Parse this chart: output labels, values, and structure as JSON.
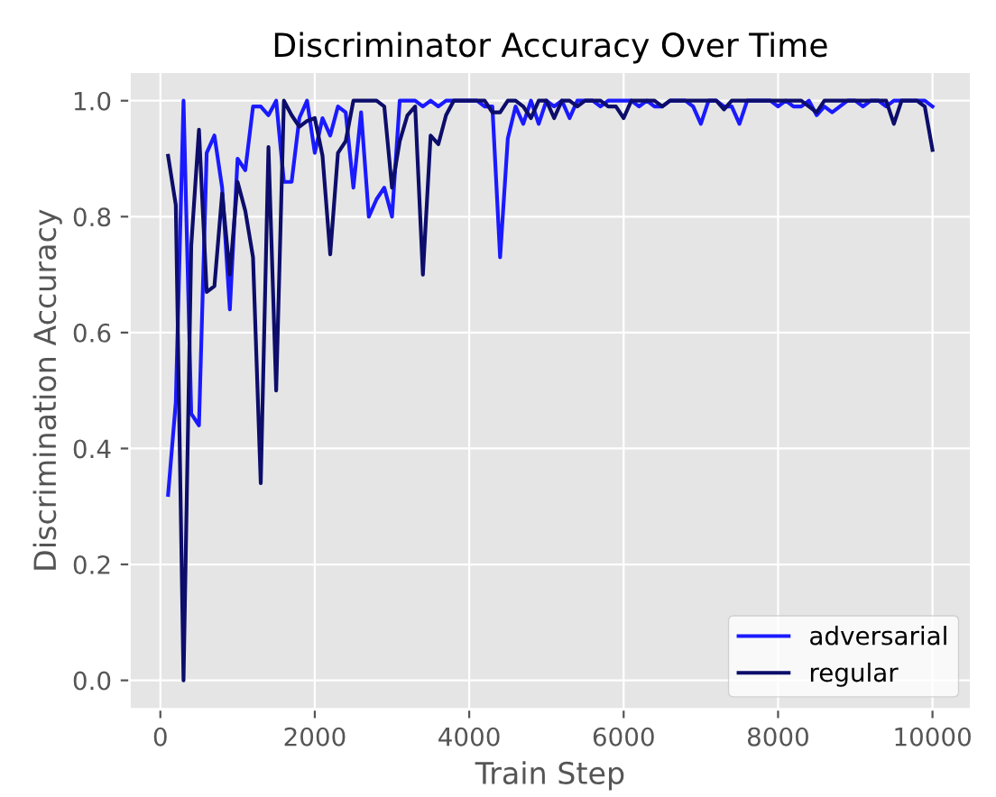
{
  "chart_data": {
    "type": "line",
    "title": "Discriminator Accuracy Over Time",
    "xlabel": "Train Step",
    "ylabel": "Discrimination Accuracy",
    "x": [
      100,
      200,
      300,
      400,
      500,
      600,
      700,
      800,
      900,
      1000,
      1100,
      1200,
      1300,
      1400,
      1500,
      1600,
      1700,
      1800,
      1900,
      2000,
      2100,
      2200,
      2300,
      2400,
      2500,
      2600,
      2700,
      2800,
      2900,
      3000,
      3100,
      3200,
      3300,
      3400,
      3500,
      3600,
      3700,
      3800,
      3900,
      4000,
      4100,
      4200,
      4300,
      4400,
      4500,
      4600,
      4700,
      4800,
      4900,
      5000,
      5100,
      5200,
      5300,
      5400,
      5500,
      5600,
      5700,
      5800,
      5900,
      6000,
      6100,
      6200,
      6300,
      6400,
      6500,
      6600,
      6700,
      6800,
      6900,
      7000,
      7100,
      7200,
      7300,
      7400,
      7500,
      7600,
      7700,
      7800,
      7900,
      8000,
      8100,
      8200,
      8300,
      8400,
      8500,
      8600,
      8700,
      8800,
      8900,
      9000,
      9100,
      9200,
      9300,
      9400,
      9500,
      9600,
      9700,
      9800,
      9900,
      10000
    ],
    "series": [
      {
        "name": "adversarial",
        "color": "#1a1aff",
        "values": [
          0.32,
          0.48,
          1.0,
          0.46,
          0.44,
          0.91,
          0.94,
          0.85,
          0.64,
          0.9,
          0.88,
          0.99,
          0.99,
          0.975,
          1.0,
          0.86,
          0.86,
          0.97,
          1.0,
          0.91,
          0.97,
          0.94,
          0.99,
          0.98,
          0.85,
          0.98,
          0.8,
          0.83,
          0.85,
          0.8,
          1.0,
          1.0,
          1.0,
          0.99,
          1.0,
          0.99,
          1.0,
          1.0,
          1.0,
          1.0,
          1.0,
          0.99,
          0.99,
          0.73,
          0.935,
          0.99,
          0.96,
          1.0,
          0.96,
          1.0,
          0.99,
          1.0,
          0.97,
          1.0,
          1.0,
          1.0,
          0.99,
          1.0,
          1.0,
          1.0,
          1.0,
          0.99,
          1.0,
          0.99,
          0.99,
          1.0,
          1.0,
          1.0,
          0.99,
          0.96,
          1.0,
          1.0,
          0.99,
          0.99,
          0.96,
          1.0,
          1.0,
          1.0,
          1.0,
          0.99,
          1.0,
          0.99,
          0.99,
          1.0,
          0.975,
          0.99,
          0.98,
          0.99,
          1.0,
          1.0,
          0.99,
          1.0,
          1.0,
          0.99,
          1.0,
          1.0,
          1.0,
          1.0,
          1.0,
          0.99
        ]
      },
      {
        "name": "regular",
        "color": "#0d0d6b",
        "values": [
          0.905,
          0.82,
          0.0,
          0.75,
          0.95,
          0.67,
          0.68,
          0.84,
          0.7,
          0.86,
          0.81,
          0.73,
          0.34,
          0.92,
          0.5,
          1.0,
          0.975,
          0.955,
          0.965,
          0.97,
          0.905,
          0.735,
          0.91,
          0.93,
          1.0,
          1.0,
          1.0,
          1.0,
          0.99,
          0.85,
          0.93,
          0.975,
          0.99,
          0.7,
          0.94,
          0.925,
          0.975,
          1.0,
          1.0,
          1.0,
          1.0,
          1.0,
          0.98,
          0.98,
          1.0,
          1.0,
          0.99,
          0.97,
          1.0,
          1.0,
          0.97,
          1.0,
          1.0,
          0.99,
          1.0,
          1.0,
          1.0,
          0.99,
          0.99,
          0.97,
          1.0,
          1.0,
          1.0,
          1.0,
          0.99,
          1.0,
          1.0,
          1.0,
          1.0,
          1.0,
          1.0,
          1.0,
          0.985,
          1.0,
          1.0,
          1.0,
          1.0,
          1.0,
          1.0,
          1.0,
          1.0,
          1.0,
          1.0,
          0.99,
          0.98,
          1.0,
          1.0,
          1.0,
          1.0,
          1.0,
          1.0,
          1.0,
          1.0,
          1.0,
          0.96,
          1.0,
          1.0,
          1.0,
          0.99,
          0.915
        ]
      }
    ],
    "xlim": [
      -400,
      10500
    ],
    "xticks": [
      0,
      2000,
      4000,
      6000,
      8000,
      10000
    ],
    "ylim": [
      -0.05,
      1.05
    ],
    "yticks": [
      {
        "value": 0,
        "label": "0.0"
      },
      0.2,
      0.4,
      0.6,
      0.8,
      {
        "value": 1,
        "label": "1.0"
      }
    ],
    "grid": true,
    "legend": "bottom right"
  }
}
